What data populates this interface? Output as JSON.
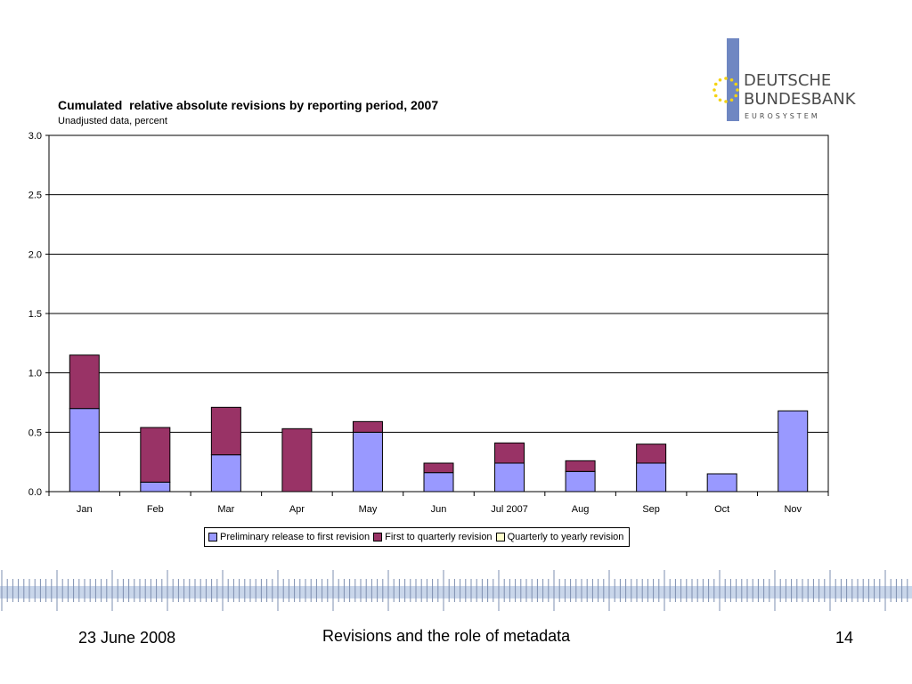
{
  "logo": {
    "line1": "DEUTSCHE",
    "line2": "BUNDESBANK",
    "line3": "EUROSYSTEM",
    "bar_color": "#6f87c2",
    "star_color": "#f5d312",
    "text_color": "#4c4c4c"
  },
  "chart_data": {
    "type": "bar",
    "stacked": true,
    "title": "Cumulated  relative absolute revisions by reporting period, 2007",
    "subtitle": "Unadjusted data, percent",
    "categories": [
      "Jan",
      "Feb",
      "Mar",
      "Apr",
      "May",
      "Jun",
      "Jul 2007",
      "Aug",
      "Sep",
      "Oct",
      "Nov"
    ],
    "series": [
      {
        "name": "Preliminary release to first revision",
        "color": "#9999ff",
        "values": [
          0.7,
          0.08,
          0.31,
          0.0,
          0.5,
          0.16,
          0.24,
          0.17,
          0.24,
          0.15,
          0.68
        ]
      },
      {
        "name": "First to quarterly revision",
        "color": "#993366",
        "values": [
          0.45,
          0.46,
          0.4,
          0.53,
          0.09,
          0.08,
          0.17,
          0.09,
          0.16,
          0.0,
          0.0
        ]
      },
      {
        "name": "Quarterly to yearly revision",
        "color": "#ffffcc",
        "values": [
          0,
          0,
          0,
          0,
          0,
          0,
          0,
          0,
          0,
          0,
          0
        ]
      }
    ],
    "ylim": [
      0,
      3.0
    ],
    "yticks": [
      "0.0",
      "0.5",
      "1.0",
      "1.5",
      "2.0",
      "2.5",
      "3.0"
    ],
    "grid": true,
    "legend_position": "bottom"
  },
  "footer": {
    "date": "23 June 2008",
    "title": "Revisions and the role of metadata",
    "page": "14"
  }
}
